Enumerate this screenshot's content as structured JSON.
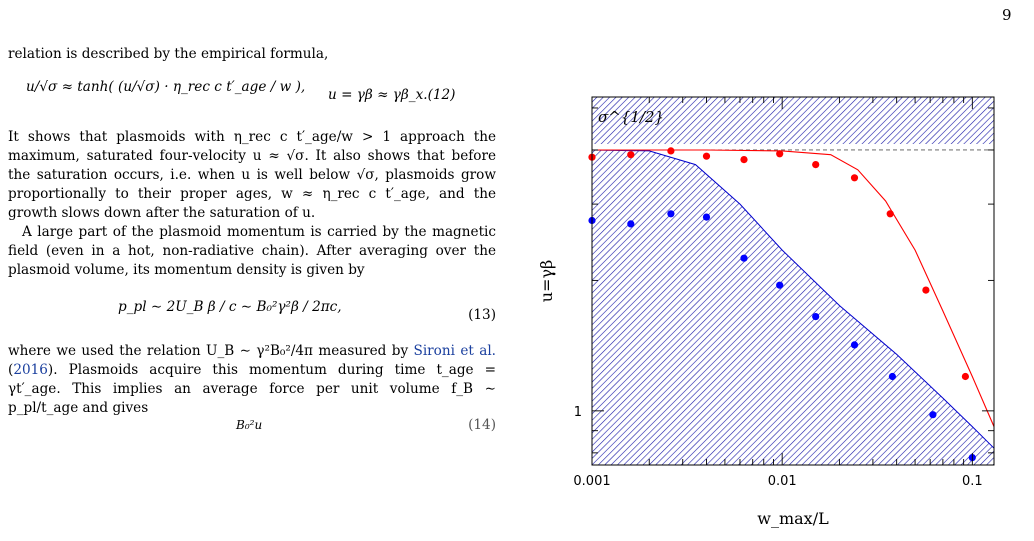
{
  "page": {
    "number": "9"
  },
  "text": {
    "p1": "relation is described by the empirical formula,",
    "eq12_lhs": "u/√σ ≈ tanh( (u/√σ) · η_rec c t′_age / w ),",
    "eq12_rhs": "u = γβ ≈ γβ_x.(12)",
    "p2": "It shows that plasmoids with η_rec c t′_age/w > 1 approach the maximum, saturated four-velocity u ≈ √σ. It also shows that before the saturation occurs, i.e. when u is well below √σ, plasmoids grow proportionally to their proper ages, w ≈ η_rec c t′_age, and the growth slows down after the saturation of u.",
    "p3": "A large part of the plasmoid momentum is carried by the magnetic field (even in a hot, non-radiative chain). After averaging over the plasmoid volume, its momentum density is given by",
    "eq13": "p_pl ∼ 2U_B β / c ∼ B₀²γ²β / 2πc,",
    "eq13_num": "(13)",
    "p4_a": "where we used the relation U_B ∼ γ²B₀²/4π measured by",
    "p4_ref": "Sironi et al.",
    "p4_year": "2016",
    "p4_b": "). Plasmoids acquire this momentum during time t_age = γt′_age. This implies an average force per unit volume f_B ∼ p_pl/t_age and gives",
    "eq14_frag": "B₀²u",
    "eq14_num": "(14)"
  },
  "chart_data": {
    "type": "scatter",
    "xlabel": "w_max/L",
    "ylabel": "u=γβ",
    "xscale": "log",
    "yscale": "log",
    "xlim": [
      0.001,
      0.13
    ],
    "ylim": [
      0.75,
      5.3
    ],
    "xticks": [
      0.001,
      0.01,
      0.1
    ],
    "xtick_labels": [
      "0.001",
      "0.01",
      "0.1"
    ],
    "yticks": [
      1
    ],
    "ytick_labels": [
      "1"
    ],
    "annotation": "σ^{1/2}",
    "sigma_half": 4.0,
    "series": [
      {
        "color": "#ff0000",
        "x": [
          0.001,
          0.0016,
          0.0026,
          0.004,
          0.0063,
          0.0097,
          0.015,
          0.024,
          0.037,
          0.057,
          0.092
        ],
        "y": [
          3.85,
          3.9,
          3.98,
          3.87,
          3.8,
          3.92,
          3.7,
          3.45,
          2.85,
          1.9,
          1.2
        ]
      },
      {
        "color": "#0000ff",
        "x": [
          0.001,
          0.0016,
          0.0026,
          0.004,
          0.0063,
          0.0097,
          0.015,
          0.024,
          0.038,
          0.062,
          0.1
        ],
        "y": [
          2.75,
          2.7,
          2.85,
          2.8,
          2.25,
          1.95,
          1.65,
          1.42,
          1.2,
          0.98,
          0.78
        ]
      }
    ],
    "red_curve": {
      "x": [
        0.001,
        0.004,
        0.01,
        0.018,
        0.025,
        0.035,
        0.05,
        0.07,
        0.1,
        0.13
      ],
      "y": [
        4.0,
        4.0,
        3.98,
        3.9,
        3.6,
        3.05,
        2.35,
        1.7,
        1.2,
        0.92
      ]
    },
    "blue_curve": {
      "x": [
        0.001,
        0.002,
        0.0035,
        0.006,
        0.01,
        0.02,
        0.04,
        0.07,
        0.1,
        0.13
      ],
      "y": [
        4.0,
        3.98,
        3.7,
        3.0,
        2.35,
        1.75,
        1.35,
        1.07,
        0.92,
        0.82
      ]
    }
  }
}
